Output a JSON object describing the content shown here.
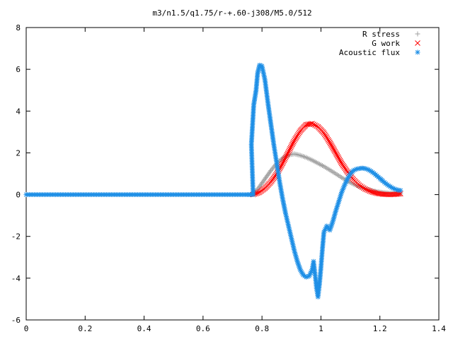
{
  "chart_data": {
    "type": "scatter",
    "title": "m3/n1.5/q1.75/r-+.60-j308/M5.0/512",
    "xlim": [
      0,
      1.4
    ],
    "ylim": [
      -6,
      8
    ],
    "x_ticks": [
      "0",
      "0.2",
      "0.4",
      "0.6",
      "0.8",
      "1",
      "1.2",
      "1.4"
    ],
    "y_ticks": [
      "-6",
      "-4",
      "-2",
      "0",
      "2",
      "4",
      "6",
      "8"
    ],
    "grid": false,
    "legend_position": "top-right",
    "series": [
      {
        "name": "R stress",
        "marker": "plus",
        "color": "#a0a0a0",
        "points": [
          [
            0.77,
            0.02
          ],
          [
            0.79,
            0.35
          ],
          [
            0.81,
            0.75
          ],
          [
            0.83,
            1.15
          ],
          [
            0.85,
            1.5
          ],
          [
            0.87,
            1.75
          ],
          [
            0.89,
            1.9
          ],
          [
            0.91,
            1.95
          ],
          [
            0.93,
            1.88
          ],
          [
            0.95,
            1.78
          ],
          [
            0.97,
            1.65
          ],
          [
            0.99,
            1.5
          ],
          [
            1.01,
            1.35
          ],
          [
            1.03,
            1.18
          ],
          [
            1.05,
            1.0
          ],
          [
            1.07,
            0.82
          ],
          [
            1.09,
            0.65
          ],
          [
            1.11,
            0.5
          ],
          [
            1.13,
            0.38
          ],
          [
            1.15,
            0.28
          ],
          [
            1.17,
            0.2
          ],
          [
            1.19,
            0.14
          ],
          [
            1.21,
            0.1
          ],
          [
            1.23,
            0.07
          ],
          [
            1.25,
            0.05
          ],
          [
            1.27,
            0.04
          ]
        ]
      },
      {
        "name": "G work",
        "marker": "cross",
        "color": "#ff0000",
        "points": [
          [
            0.77,
            0.0
          ],
          [
            0.79,
            0.1
          ],
          [
            0.81,
            0.3
          ],
          [
            0.83,
            0.6
          ],
          [
            0.85,
            1.0
          ],
          [
            0.87,
            1.5
          ],
          [
            0.89,
            2.05
          ],
          [
            0.91,
            2.6
          ],
          [
            0.93,
            3.05
          ],
          [
            0.95,
            3.35
          ],
          [
            0.97,
            3.4
          ],
          [
            0.99,
            3.25
          ],
          [
            1.01,
            2.95
          ],
          [
            1.03,
            2.5
          ],
          [
            1.05,
            2.0
          ],
          [
            1.07,
            1.5
          ],
          [
            1.09,
            1.08
          ],
          [
            1.11,
            0.72
          ],
          [
            1.13,
            0.45
          ],
          [
            1.15,
            0.27
          ],
          [
            1.17,
            0.14
          ],
          [
            1.19,
            0.06
          ],
          [
            1.21,
            0.02
          ],
          [
            1.23,
            0.0
          ],
          [
            1.25,
            0.01
          ],
          [
            1.27,
            0.04
          ]
        ]
      },
      {
        "name": "Acoustic flux",
        "marker": "star",
        "color": "#1e8fe6",
        "points": [
          [
            0.0,
            0.0
          ],
          [
            0.05,
            0.0
          ],
          [
            0.1,
            0.0
          ],
          [
            0.15,
            0.0
          ],
          [
            0.2,
            0.0
          ],
          [
            0.25,
            0.0
          ],
          [
            0.3,
            0.0
          ],
          [
            0.35,
            0.0
          ],
          [
            0.4,
            0.0
          ],
          [
            0.45,
            0.0
          ],
          [
            0.5,
            0.0
          ],
          [
            0.55,
            0.0
          ],
          [
            0.6,
            0.0
          ],
          [
            0.65,
            0.0
          ],
          [
            0.7,
            0.0
          ],
          [
            0.75,
            0.0
          ],
          [
            0.77,
            0.0
          ],
          [
            0.764,
            2.4
          ],
          [
            0.772,
            4.3
          ],
          [
            0.78,
            5.0
          ],
          [
            0.785,
            5.8
          ],
          [
            0.792,
            6.2
          ],
          [
            0.8,
            6.15
          ],
          [
            0.81,
            5.5
          ],
          [
            0.82,
            4.4
          ],
          [
            0.83,
            3.4
          ],
          [
            0.84,
            2.4
          ],
          [
            0.85,
            1.5
          ],
          [
            0.86,
            0.6
          ],
          [
            0.87,
            -0.2
          ],
          [
            0.88,
            -0.9
          ],
          [
            0.89,
            -1.5
          ],
          [
            0.9,
            -2.1
          ],
          [
            0.91,
            -2.7
          ],
          [
            0.92,
            -3.2
          ],
          [
            0.93,
            -3.6
          ],
          [
            0.94,
            -3.85
          ],
          [
            0.95,
            -3.95
          ],
          [
            0.96,
            -3.9
          ],
          [
            0.97,
            -3.6
          ],
          [
            0.975,
            -3.2
          ],
          [
            0.98,
            -3.8
          ],
          [
            0.985,
            -4.5
          ],
          [
            0.99,
            -4.9
          ],
          [
            0.995,
            -4.3
          ],
          [
            1.0,
            -3.5
          ],
          [
            1.005,
            -2.6
          ],
          [
            1.01,
            -1.8
          ],
          [
            1.02,
            -1.5
          ],
          [
            1.03,
            -1.7
          ],
          [
            1.04,
            -1.3
          ],
          [
            1.05,
            -0.8
          ],
          [
            1.06,
            -0.35
          ],
          [
            1.07,
            0.1
          ],
          [
            1.08,
            0.45
          ],
          [
            1.09,
            0.75
          ],
          [
            1.1,
            1.0
          ],
          [
            1.11,
            1.15
          ],
          [
            1.12,
            1.22
          ],
          [
            1.13,
            1.25
          ],
          [
            1.14,
            1.27
          ],
          [
            1.15,
            1.25
          ],
          [
            1.16,
            1.2
          ],
          [
            1.17,
            1.12
          ],
          [
            1.18,
            1.02
          ],
          [
            1.19,
            0.9
          ],
          [
            1.2,
            0.78
          ],
          [
            1.21,
            0.65
          ],
          [
            1.22,
            0.53
          ],
          [
            1.23,
            0.43
          ],
          [
            1.24,
            0.34
          ],
          [
            1.25,
            0.27
          ],
          [
            1.26,
            0.22
          ],
          [
            1.27,
            0.2
          ]
        ]
      }
    ]
  }
}
